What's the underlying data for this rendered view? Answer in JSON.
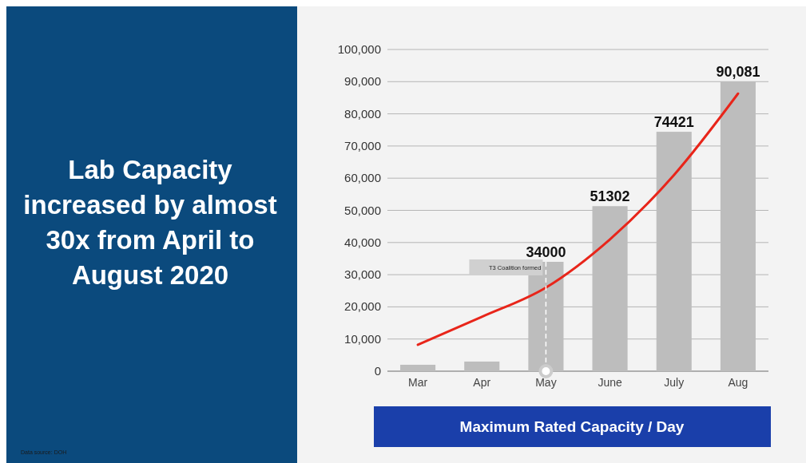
{
  "chart_data": {
    "type": "bar",
    "title": "Lab Capacity increased by almost 30x from April to August 2020",
    "xlabel": "Maximum Rated Capacity / Day",
    "categories": [
      "Mar",
      "Apr",
      "May",
      "June",
      "July",
      "Aug"
    ],
    "series": [
      {
        "color": "#bdbdbd",
        "values": [
          2000,
          3000,
          34000,
          51302,
          74421,
          90081
        ],
        "value_labels": [
          null,
          null,
          "34000",
          "51302",
          "74421",
          "90,081"
        ]
      },
      {
        "type": "line",
        "color": "#e8251a",
        "values": [
          8200,
          16900,
          26000,
          41000,
          61000,
          86300
        ]
      }
    ],
    "ylim": [
      0,
      100000
    ],
    "yticks": [
      {
        "value": 0,
        "label": "0"
      },
      {
        "value": 10000,
        "label": "10,000"
      },
      {
        "value": 20000,
        "label": "20,000"
      },
      {
        "value": 30000,
        "label": "30,000"
      },
      {
        "value": 40000,
        "label": "40,000"
      },
      {
        "value": 50000,
        "label": "50,000"
      },
      {
        "value": 60000,
        "label": "60,000"
      },
      {
        "value": 70000,
        "label": "70,000"
      },
      {
        "value": 80000,
        "label": "80,000"
      },
      {
        "value": 90000,
        "label": "90,000"
      },
      {
        "value": 100000,
        "label": "100,000"
      }
    ],
    "grid": "y",
    "marker": "none",
    "line_style": "solid",
    "ref_lines": [
      {
        "axis": "x",
        "value": "May",
        "label": "T3 Coalition formed",
        "line_style": "dashed",
        "color": "#ffffff"
      }
    ],
    "annotations": [
      "Data source: DOH"
    ]
  }
}
